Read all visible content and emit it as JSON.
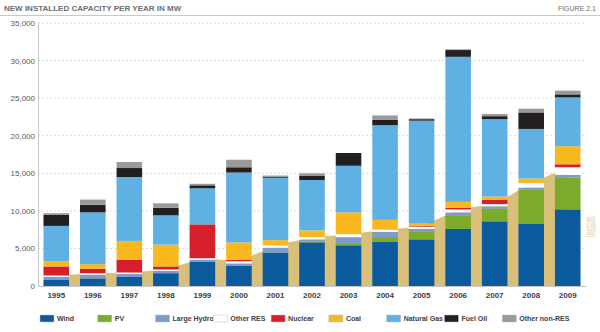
{
  "chart_data": {
    "type": "bar",
    "title": "NEW INSTALLED CAPACITY PER YEAR IN MW",
    "subtitle": "FIGURE 2.1",
    "stacked": true,
    "grid": true,
    "legend": "bottom",
    "categories": [
      "1995",
      "1996",
      "1997",
      "1998",
      "1999",
      "2000",
      "2001",
      "2002",
      "2003",
      "2004",
      "2005",
      "2006",
      "2007",
      "2008",
      "2009"
    ],
    "ylim": [
      0,
      35000
    ],
    "yticks": [
      0,
      {
        "value": 5000,
        "label": "5,000"
      },
      {
        "value": 10000,
        "label": "10,000"
      },
      {
        "value": 15000,
        "label": "15,000"
      },
      {
        "value": 20000,
        "label": "20,000"
      },
      {
        "value": 25000,
        "label": "25,000"
      },
      {
        "value": 30000,
        "label": "30,000"
      },
      {
        "value": 35000,
        "label": "35,000"
      }
    ],
    "series": [
      {
        "name": "Wind",
        "color": "#0b5a9e",
        "values": [
          800,
          1000,
          1200,
          1700,
          3200,
          2700,
          4400,
          5800,
          5400,
          5900,
          6200,
          7600,
          8600,
          8300,
          10200
        ]
      },
      {
        "name": "PV",
        "color": "#7cab2b",
        "values": [
          0,
          0,
          0,
          0,
          0,
          0,
          0,
          100,
          200,
          600,
          1000,
          1800,
          1700,
          4500,
          4200
        ]
      },
      {
        "name": "Large Hydro",
        "color": "#7d9cc9",
        "values": [
          400,
          500,
          400,
          300,
          300,
          300,
          700,
          300,
          900,
          700,
          400,
          400,
          300,
          300,
          400
        ]
      },
      {
        "name": "Other RES",
        "color": "#ffffff",
        "values": [
          200,
          200,
          200,
          200,
          200,
          300,
          300,
          300,
          400,
          300,
          300,
          400,
          300,
          600,
          1000
        ]
      },
      {
        "name": "Nuclear",
        "color": "#d71f2b",
        "values": [
          1200,
          600,
          1700,
          400,
          4500,
          200,
          0,
          0,
          0,
          0,
          100,
          200,
          600,
          0,
          400
        ]
      },
      {
        "name": "Coal",
        "color": "#f9b81d",
        "values": [
          700,
          600,
          2500,
          2900,
          0,
          2300,
          700,
          900,
          2900,
          1300,
          300,
          800,
          400,
          600,
          2400
        ]
      },
      {
        "name": "Natural Gas",
        "color": "#5fb1e4",
        "values": [
          4700,
          6900,
          8500,
          3900,
          4800,
          9300,
          8300,
          6700,
          6200,
          12600,
          13700,
          19300,
          10300,
          6600,
          6500
        ]
      },
      {
        "name": "Fuel Oil",
        "color": "#231f20",
        "values": [
          1500,
          1000,
          1200,
          1000,
          400,
          700,
          100,
          600,
          1700,
          700,
          200,
          900,
          400,
          2200,
          400
        ]
      },
      {
        "name": "Other non-RES",
        "color": "#9a9a9a",
        "values": [
          200,
          700,
          800,
          600,
          200,
          1000,
          200,
          300,
          0,
          600,
          100,
          100,
          300,
          500,
          500
        ]
      },
      {
        "name": "RES",
        "type": "area",
        "color": "#d9c07a",
        "values": [
          1400,
          1700,
          1800,
          2200,
          3700,
          3300,
          5400,
          6500,
          6900,
          7500,
          7900,
          10200,
          10900,
          13700,
          15800
        ]
      }
    ]
  }
}
